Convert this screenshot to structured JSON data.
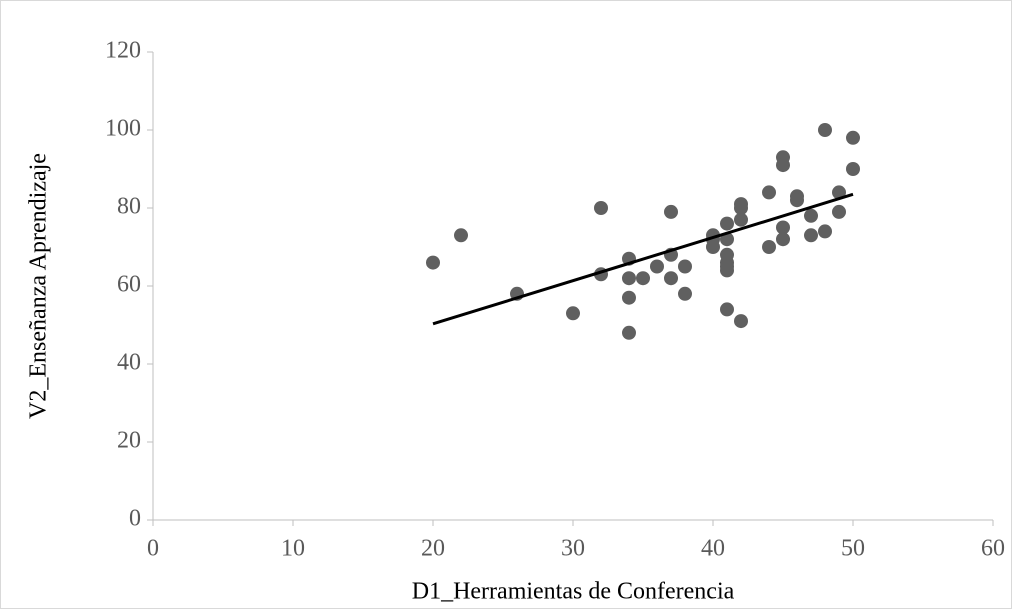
{
  "chart_data": {
    "type": "scatter",
    "x_label": "D1_Herramientas de Conferencia",
    "y_label": "V2_Enseñanza Aprendizaje",
    "color": "#606060",
    "xlim": [
      0,
      60
    ],
    "xticks": [
      0,
      10,
      20,
      30,
      40,
      50,
      60
    ],
    "ylim": [
      0,
      120
    ],
    "yticks": [
      0,
      20,
      40,
      60,
      80,
      100,
      120
    ],
    "grid": false,
    "x": [
      20,
      22,
      26,
      30,
      32,
      32,
      34,
      34,
      34,
      34,
      35,
      36,
      37,
      37,
      37,
      38,
      38,
      40,
      40,
      40,
      41,
      41,
      41,
      41,
      41,
      41,
      41,
      42,
      42,
      42,
      42,
      44,
      44,
      45,
      45,
      45,
      45,
      46,
      46,
      47,
      47,
      48,
      48,
      49,
      49,
      50,
      50
    ],
    "values": [
      66,
      73,
      58,
      53,
      80,
      63,
      67,
      62,
      57,
      48,
      62,
      65,
      79,
      68,
      62,
      65,
      58,
      73,
      72,
      70,
      76,
      72,
      68,
      66,
      65,
      64,
      54,
      81,
      80,
      77,
      51,
      84,
      70,
      93,
      91,
      75,
      72,
      83,
      82,
      78,
      73,
      100,
      74,
      84,
      79,
      98,
      90
    ],
    "trendline": {
      "x": [
        20,
        50
      ],
      "values": [
        50.3,
        83.5
      ],
      "color": "#000000"
    }
  }
}
